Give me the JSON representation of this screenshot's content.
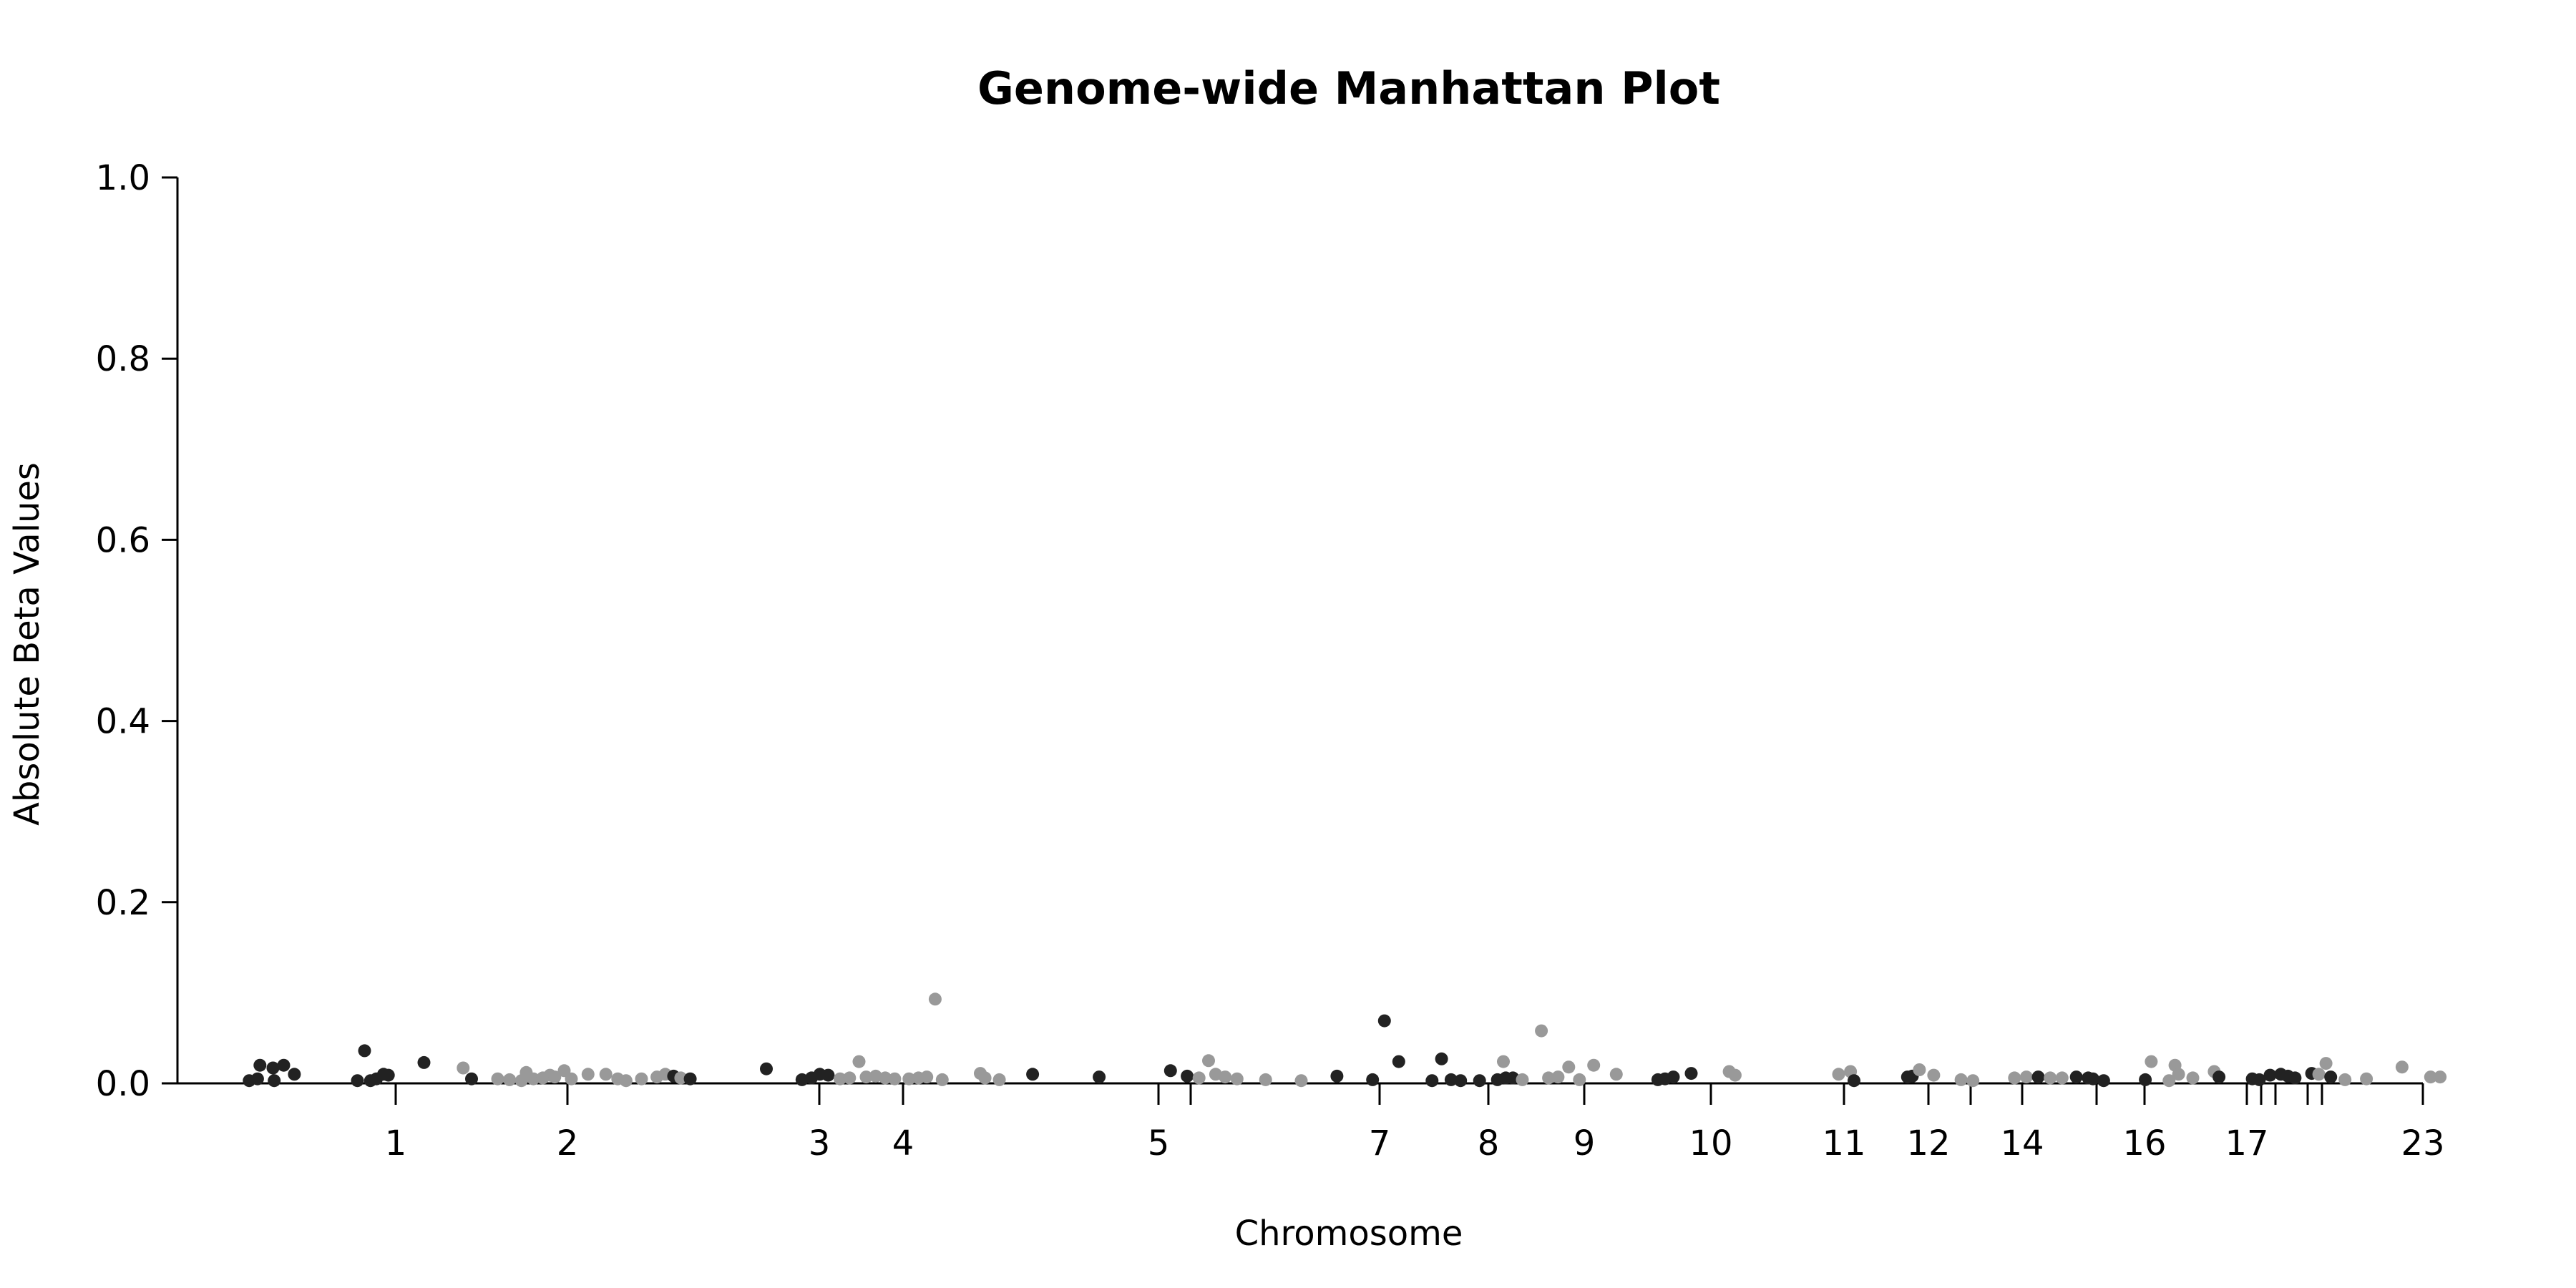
{
  "chart_data": {
    "type": "scatter",
    "title": "Genome-wide Manhattan Plot",
    "xlabel": "Chromosome",
    "ylabel": "Absolute Beta Values",
    "ylim": [
      0,
      1.0
    ],
    "yticks": [
      "0.0",
      "0.2",
      "0.4",
      "0.6",
      "0.8",
      "1.0"
    ],
    "xticks": [
      "1",
      "2",
      "3",
      "4",
      "5",
      "7",
      "8",
      "9",
      "10",
      "11",
      "12",
      "14",
      "16",
      "17",
      "23"
    ],
    "grid": false,
    "legend": "none",
    "colors": {
      "dark": "#222222",
      "light": "#999999",
      "axis": "#000000"
    },
    "point_groups": [
      "dark",
      "light"
    ],
    "points": [
      [
        0.05,
        0.003,
        0
      ],
      [
        0.12,
        0.005,
        0
      ],
      [
        0.14,
        0.02,
        0
      ],
      [
        0.25,
        0.017,
        0
      ],
      [
        0.26,
        0.003,
        0
      ],
      [
        0.34,
        0.02,
        0
      ],
      [
        0.43,
        0.01,
        0
      ],
      [
        0.96,
        0.003,
        0
      ],
      [
        1.02,
        0.036,
        0
      ],
      [
        1.07,
        0.003,
        0
      ],
      [
        1.12,
        0.005,
        0
      ],
      [
        1.18,
        0.01,
        0
      ],
      [
        1.22,
        0.009,
        0
      ],
      [
        1.52,
        0.023,
        0
      ],
      [
        1.85,
        0.017,
        1
      ],
      [
        1.92,
        0.005,
        0
      ],
      [
        2.14,
        0.005,
        1
      ],
      [
        2.24,
        0.004,
        1
      ],
      [
        2.34,
        0.003,
        1
      ],
      [
        2.38,
        0.012,
        1
      ],
      [
        2.44,
        0.005,
        1
      ],
      [
        2.52,
        0.006,
        1
      ],
      [
        2.58,
        0.009,
        1
      ],
      [
        2.62,
        0.007,
        1
      ],
      [
        2.7,
        0.014,
        1
      ],
      [
        2.76,
        0.005,
        1
      ],
      [
        2.9,
        0.01,
        1
      ],
      [
        3.05,
        0.01,
        1
      ],
      [
        3.15,
        0.005,
        1
      ],
      [
        3.22,
        0.003,
        1
      ],
      [
        3.35,
        0.005,
        1
      ],
      [
        3.48,
        0.007,
        1
      ],
      [
        3.55,
        0.01,
        1
      ],
      [
        3.62,
        0.008,
        0
      ],
      [
        3.68,
        0.006,
        1
      ],
      [
        3.76,
        0.005,
        0
      ],
      [
        4.4,
        0.016,
        0
      ],
      [
        4.7,
        0.004,
        0
      ],
      [
        4.78,
        0.006,
        0
      ],
      [
        4.85,
        0.01,
        0
      ],
      [
        4.92,
        0.009,
        0
      ],
      [
        5.02,
        0.005,
        1
      ],
      [
        5.1,
        0.006,
        1
      ],
      [
        5.18,
        0.024,
        1
      ],
      [
        5.24,
        0.007,
        1
      ],
      [
        5.32,
        0.008,
        1
      ],
      [
        5.4,
        0.006,
        1
      ],
      [
        5.48,
        0.005,
        1
      ],
      [
        5.6,
        0.005,
        1
      ],
      [
        5.68,
        0.006,
        1
      ],
      [
        5.75,
        0.007,
        1
      ],
      [
        5.82,
        0.093,
        1
      ],
      [
        5.88,
        0.004,
        1
      ],
      [
        6.2,
        0.011,
        1
      ],
      [
        6.24,
        0.006,
        1
      ],
      [
        6.36,
        0.004,
        1
      ],
      [
        6.64,
        0.01,
        0
      ],
      [
        7.2,
        0.007,
        0
      ],
      [
        7.8,
        0.014,
        0
      ],
      [
        7.94,
        0.008,
        0
      ],
      [
        8.04,
        0.006,
        1
      ],
      [
        8.12,
        0.025,
        1
      ],
      [
        8.18,
        0.01,
        1
      ],
      [
        8.26,
        0.007,
        1
      ],
      [
        8.36,
        0.005,
        1
      ],
      [
        8.6,
        0.004,
        1
      ],
      [
        8.9,
        0.003,
        1
      ],
      [
        9.2,
        0.008,
        0
      ],
      [
        9.5,
        0.004,
        0
      ],
      [
        9.6,
        0.069,
        0
      ],
      [
        9.72,
        0.024,
        0
      ],
      [
        10.0,
        0.003,
        0
      ],
      [
        10.08,
        0.027,
        0
      ],
      [
        10.16,
        0.004,
        0
      ],
      [
        10.24,
        0.003,
        0
      ],
      [
        10.4,
        0.003,
        0
      ],
      [
        10.55,
        0.004,
        0
      ],
      [
        10.62,
        0.006,
        0
      ],
      [
        10.68,
        0.006,
        0
      ],
      [
        10.6,
        0.024,
        1
      ],
      [
        10.76,
        0.004,
        1
      ],
      [
        10.92,
        0.058,
        1
      ],
      [
        10.98,
        0.006,
        1
      ],
      [
        11.06,
        0.007,
        1
      ],
      [
        11.15,
        0.018,
        1
      ],
      [
        11.24,
        0.004,
        1
      ],
      [
        11.36,
        0.02,
        1
      ],
      [
        11.55,
        0.01,
        1
      ],
      [
        11.9,
        0.004,
        0
      ],
      [
        11.96,
        0.005,
        0
      ],
      [
        12.03,
        0.007,
        0
      ],
      [
        12.18,
        0.011,
        0
      ],
      [
        12.5,
        0.013,
        1
      ],
      [
        12.55,
        0.009,
        1
      ],
      [
        13.42,
        0.01,
        1
      ],
      [
        13.52,
        0.013,
        1
      ],
      [
        13.55,
        0.003,
        0
      ],
      [
        14.0,
        0.007,
        0
      ],
      [
        14.04,
        0.008,
        0
      ],
      [
        14.1,
        0.015,
        1
      ],
      [
        14.22,
        0.009,
        1
      ],
      [
        14.45,
        0.004,
        1
      ],
      [
        14.55,
        0.003,
        1
      ],
      [
        14.9,
        0.006,
        1
      ],
      [
        15.0,
        0.007,
        1
      ],
      [
        15.1,
        0.007,
        0
      ],
      [
        15.2,
        0.006,
        1
      ],
      [
        15.3,
        0.006,
        1
      ],
      [
        15.42,
        0.007,
        0
      ],
      [
        15.52,
        0.006,
        0
      ],
      [
        15.56,
        0.005,
        0
      ],
      [
        15.65,
        0.003,
        0
      ],
      [
        16.0,
        0.004,
        0
      ],
      [
        16.05,
        0.024,
        1
      ],
      [
        16.2,
        0.003,
        1
      ],
      [
        16.25,
        0.02,
        1
      ],
      [
        16.28,
        0.01,
        1
      ],
      [
        16.4,
        0.006,
        1
      ],
      [
        16.58,
        0.013,
        1
      ],
      [
        16.62,
        0.007,
        0
      ],
      [
        16.9,
        0.005,
        0
      ],
      [
        16.96,
        0.004,
        0
      ],
      [
        17.05,
        0.009,
        0
      ],
      [
        17.14,
        0.01,
        0
      ],
      [
        17.2,
        0.008,
        0
      ],
      [
        17.26,
        0.006,
        0
      ],
      [
        17.4,
        0.011,
        0
      ],
      [
        17.46,
        0.01,
        1
      ],
      [
        17.52,
        0.022,
        1
      ],
      [
        17.56,
        0.007,
        0
      ],
      [
        17.68,
        0.004,
        1
      ],
      [
        17.86,
        0.005,
        1
      ],
      [
        18.16,
        0.018,
        1
      ],
      [
        18.4,
        0.007,
        1
      ],
      [
        18.48,
        0.007,
        1
      ]
    ],
    "x_boundaries": [
      2.95,
      3.13,
      3.5
    ]
  }
}
